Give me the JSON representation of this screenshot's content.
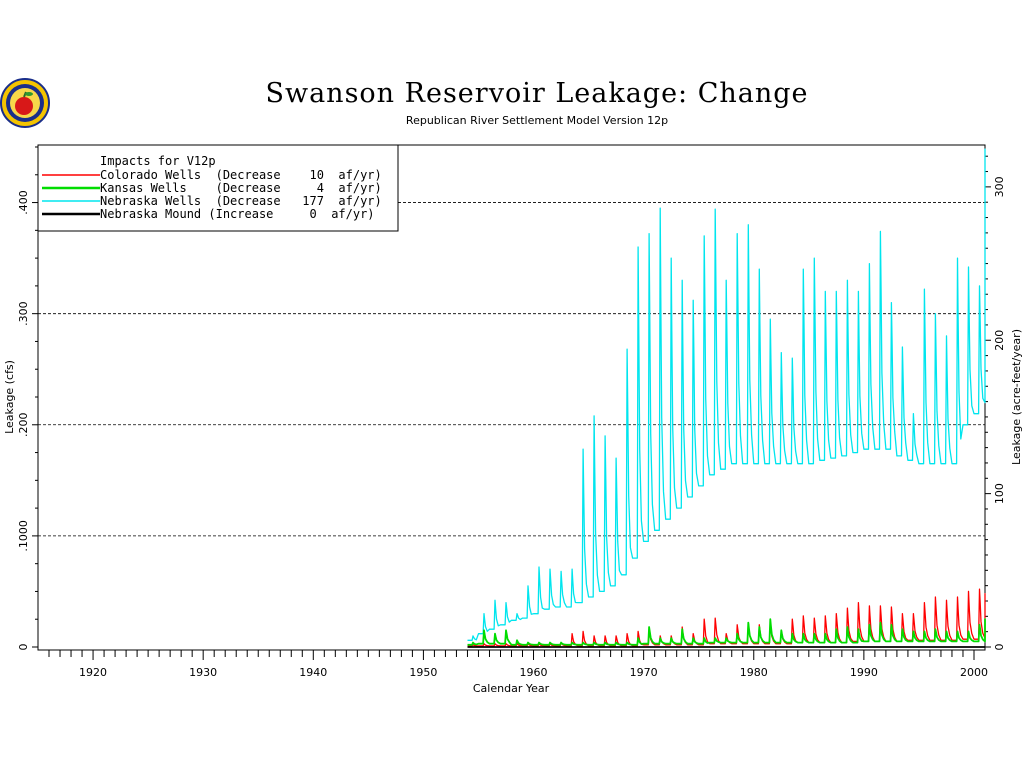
{
  "chart_data": {
    "type": "line",
    "title": "Swanson Reservoir Leakage: Change",
    "subtitle": "Republican River Settlement Model Version 12p",
    "xlabel": "Calendar Year",
    "ylabel": "Leakage (cfs)",
    "ylabel_right": "Leakage (acre-feet/year)",
    "xlim": [
      1915,
      2001
    ],
    "ylim": [
      0,
      0.45
    ],
    "ylim_right": [
      0,
      326
    ],
    "x_ticks": [
      1920,
      1930,
      1940,
      1950,
      1960,
      1970,
      1980,
      1990,
      2000
    ],
    "x_tick_labels": [
      "1920",
      "1930",
      "1940",
      "1950",
      "1960",
      "1970",
      "1980",
      "1990",
      "2000"
    ],
    "y_ticks": [
      0,
      0.1,
      0.2,
      0.3,
      0.4
    ],
    "y_tick_labels": [
      "0",
      ".1000",
      ".200",
      ".300",
      ".400"
    ],
    "y_right_ticks": [
      0,
      100,
      200,
      300
    ],
    "y_right_tick_labels": [
      "0",
      "100",
      "200",
      "300"
    ],
    "gridlines_y": [
      0.1,
      0.2,
      0.3,
      0.4
    ],
    "legend": {
      "title": "Impacts for V12p",
      "position": "top-left",
      "entries": [
        {
          "label": "Colorado Wells  (Decrease    10  af/yr)",
          "color": "#ff0000"
        },
        {
          "label": "Kansas Wells    (Decrease     4  af/yr)",
          "color": "#00dd00"
        },
        {
          "label": "Nebraska Wells  (Decrease   177  af/yr)",
          "color": "#00e5ee"
        },
        {
          "label": "Nebraska Mound (Increase     0  af/yr)",
          "color": "#000000"
        }
      ]
    },
    "series": [
      {
        "name": "Nebraska Wells",
        "color": "#00e5ee",
        "x": [
          1954,
          1955,
          1956,
          1957,
          1958,
          1959,
          1960,
          1961,
          1962,
          1963,
          1964,
          1965,
          1966,
          1967,
          1968,
          1969,
          1970,
          1971,
          1972,
          1973,
          1974,
          1975,
          1976,
          1977,
          1978,
          1979,
          1980,
          1981,
          1982,
          1983,
          1984,
          1985,
          1986,
          1987,
          1988,
          1989,
          1990,
          1991,
          1992,
          1993,
          1994,
          1995,
          1996,
          1997,
          1998,
          1999,
          2000,
          2001
        ],
        "base": [
          0.006,
          0.012,
          0.016,
          0.02,
          0.024,
          0.026,
          0.03,
          0.034,
          0.036,
          0.036,
          0.04,
          0.045,
          0.05,
          0.055,
          0.065,
          0.08,
          0.095,
          0.105,
          0.115,
          0.125,
          0.135,
          0.145,
          0.155,
          0.16,
          0.165,
          0.165,
          0.165,
          0.165,
          0.165,
          0.165,
          0.165,
          0.165,
          0.168,
          0.17,
          0.172,
          0.175,
          0.178,
          0.178,
          0.178,
          0.172,
          0.168,
          0.165,
          0.165,
          0.165,
          0.165,
          0.2,
          0.21,
          0.22
        ],
        "peak": [
          0.01,
          0.03,
          0.042,
          0.04,
          0.03,
          0.055,
          0.072,
          0.07,
          0.068,
          0.07,
          0.178,
          0.208,
          0.19,
          0.17,
          0.268,
          0.36,
          0.372,
          0.395,
          0.35,
          0.33,
          0.312,
          0.37,
          0.394,
          0.33,
          0.372,
          0.38,
          0.34,
          0.295,
          0.265,
          0.26,
          0.34,
          0.35,
          0.32,
          0.32,
          0.33,
          0.32,
          0.345,
          0.374,
          0.31,
          0.27,
          0.21,
          0.322,
          0.3,
          0.28,
          0.35,
          0.342,
          0.325,
          0.448
        ]
      },
      {
        "name": "Colorado Wells",
        "color": "#ff0000",
        "x": [
          1954,
          1955,
          1956,
          1957,
          1958,
          1959,
          1960,
          1961,
          1962,
          1963,
          1964,
          1965,
          1966,
          1967,
          1968,
          1969,
          1970,
          1971,
          1972,
          1973,
          1974,
          1975,
          1976,
          1977,
          1978,
          1979,
          1980,
          1981,
          1982,
          1983,
          1984,
          1985,
          1986,
          1987,
          1988,
          1989,
          1990,
          1991,
          1992,
          1993,
          1994,
          1995,
          1996,
          1997,
          1998,
          1999,
          2000,
          2001
        ],
        "base": [
          0.001,
          0.001,
          0.001,
          0.001,
          0.001,
          0.001,
          0.001,
          0.001,
          0.001,
          0.001,
          0.001,
          0.001,
          0.001,
          0.001,
          0.001,
          0.001,
          0.002,
          0.002,
          0.002,
          0.002,
          0.002,
          0.002,
          0.003,
          0.003,
          0.003,
          0.003,
          0.003,
          0.003,
          0.003,
          0.003,
          0.004,
          0.004,
          0.004,
          0.004,
          0.004,
          0.005,
          0.005,
          0.005,
          0.005,
          0.005,
          0.006,
          0.006,
          0.006,
          0.006,
          0.006,
          0.007,
          0.007,
          0.008
        ],
        "peak": [
          0.002,
          0.003,
          0.003,
          0.003,
          0.003,
          0.003,
          0.003,
          0.003,
          0.004,
          0.012,
          0.014,
          0.01,
          0.01,
          0.01,
          0.012,
          0.014,
          0.016,
          0.01,
          0.01,
          0.018,
          0.012,
          0.025,
          0.026,
          0.012,
          0.02,
          0.022,
          0.02,
          0.022,
          0.015,
          0.025,
          0.028,
          0.026,
          0.028,
          0.03,
          0.035,
          0.04,
          0.037,
          0.037,
          0.036,
          0.03,
          0.03,
          0.04,
          0.045,
          0.042,
          0.045,
          0.05,
          0.052,
          0.048
        ]
      },
      {
        "name": "Kansas Wells",
        "color": "#00dd00",
        "x": [
          1954,
          1955,
          1956,
          1957,
          1958,
          1959,
          1960,
          1961,
          1962,
          1963,
          1964,
          1965,
          1966,
          1967,
          1968,
          1969,
          1970,
          1971,
          1972,
          1973,
          1974,
          1975,
          1976,
          1977,
          1978,
          1979,
          1980,
          1981,
          1982,
          1983,
          1984,
          1985,
          1986,
          1987,
          1988,
          1989,
          1990,
          1991,
          1992,
          1993,
          1994,
          1995,
          1996,
          1997,
          1998,
          1999,
          2000,
          2001
        ],
        "base": [
          0.002,
          0.003,
          0.003,
          0.003,
          0.002,
          0.002,
          0.002,
          0.002,
          0.002,
          0.002,
          0.002,
          0.002,
          0.002,
          0.002,
          0.002,
          0.002,
          0.003,
          0.003,
          0.003,
          0.003,
          0.003,
          0.003,
          0.004,
          0.004,
          0.004,
          0.004,
          0.004,
          0.004,
          0.004,
          0.004,
          0.004,
          0.004,
          0.004,
          0.004,
          0.004,
          0.004,
          0.005,
          0.005,
          0.005,
          0.005,
          0.005,
          0.005,
          0.005,
          0.005,
          0.005,
          0.005,
          0.005,
          0.005
        ],
        "peak": [
          0.004,
          0.015,
          0.012,
          0.015,
          0.006,
          0.004,
          0.004,
          0.004,
          0.004,
          0.004,
          0.004,
          0.004,
          0.004,
          0.004,
          0.004,
          0.008,
          0.018,
          0.008,
          0.008,
          0.016,
          0.008,
          0.008,
          0.008,
          0.008,
          0.012,
          0.022,
          0.018,
          0.025,
          0.015,
          0.012,
          0.012,
          0.012,
          0.012,
          0.016,
          0.018,
          0.016,
          0.02,
          0.022,
          0.02,
          0.016,
          0.014,
          0.014,
          0.016,
          0.014,
          0.014,
          0.014,
          0.02,
          0.025
        ]
      },
      {
        "name": "Nebraska Mound",
        "color": "#000000",
        "x": [
          1954,
          2001
        ],
        "base": [
          0,
          0
        ],
        "peak": [
          0,
          0
        ]
      }
    ]
  }
}
